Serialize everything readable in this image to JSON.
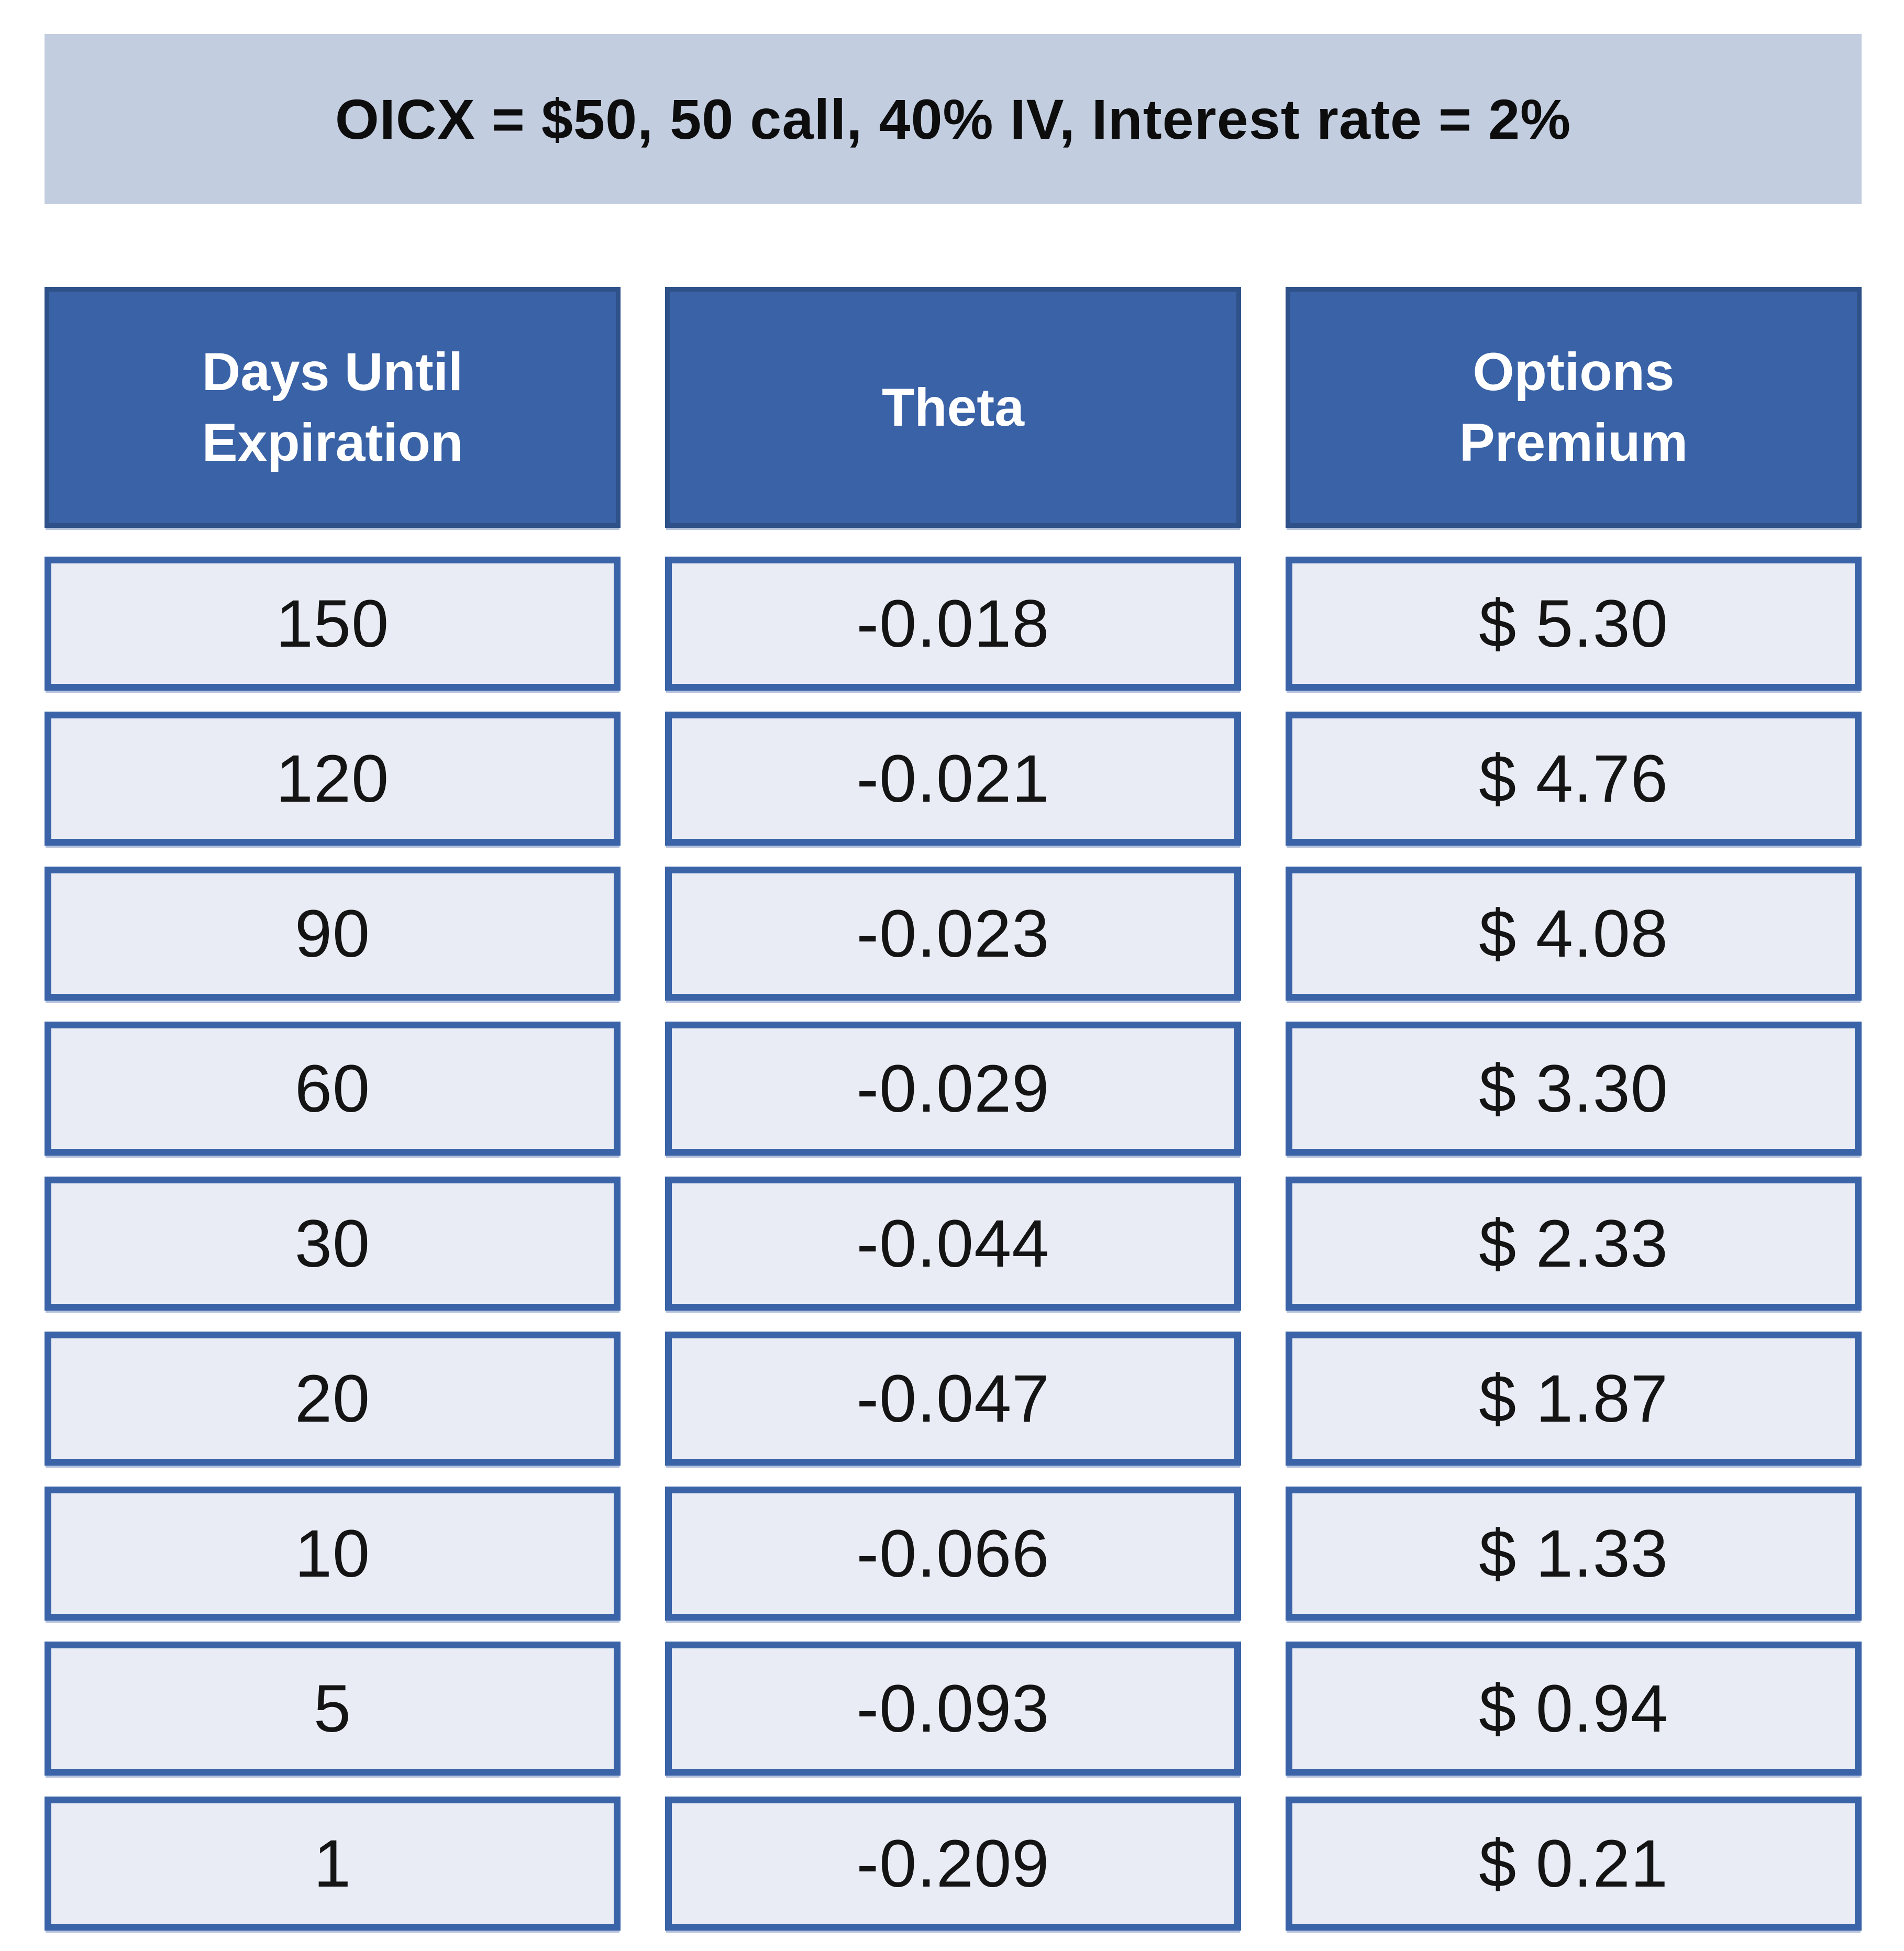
{
  "banner": {
    "title": "OICX = $50, 50 call, 40% IV, Interest rate = 2%"
  },
  "table": {
    "headers": {
      "days": "Days Until\nExpiration",
      "theta": "Theta",
      "premium": "Options\nPremium"
    },
    "rows": [
      {
        "days": "150",
        "theta": "-0.018",
        "premium": "$ 5.30"
      },
      {
        "days": "120",
        "theta": "-0.021",
        "premium": "$ 4.76"
      },
      {
        "days": "90",
        "theta": "-0.023",
        "premium": "$ 4.08"
      },
      {
        "days": "60",
        "theta": "-0.029",
        "premium": "$ 3.30"
      },
      {
        "days": "30",
        "theta": "-0.044",
        "premium": "$ 2.33"
      },
      {
        "days": "20",
        "theta": "-0.047",
        "premium": "$ 1.87"
      },
      {
        "days": "10",
        "theta": "-0.066",
        "premium": "$ 1.33"
      },
      {
        "days": "5",
        "theta": "-0.093",
        "premium": "$ 0.94"
      },
      {
        "days": "1",
        "theta": "-0.209",
        "premium": "$ 0.21"
      }
    ]
  },
  "colors": {
    "banner_bg": "#c2cde0",
    "header_bg": "#3a62a6",
    "header_border": "#2f5189",
    "cell_bg": "#e9ecf5",
    "cell_border": "#3a63a8",
    "header_text": "#ffffff",
    "body_text": "#141414"
  },
  "chart_data": {
    "type": "table",
    "title": "OICX = $50, 50 call, 40% IV, Interest rate = 2%",
    "columns": [
      "Days Until Expiration",
      "Theta",
      "Options Premium"
    ],
    "rows": [
      [
        150,
        -0.018,
        5.3
      ],
      [
        120,
        -0.021,
        4.76
      ],
      [
        90,
        -0.023,
        4.08
      ],
      [
        60,
        -0.029,
        3.3
      ],
      [
        30,
        -0.044,
        2.33
      ],
      [
        20,
        -0.047,
        1.87
      ],
      [
        10,
        -0.066,
        1.33
      ],
      [
        5,
        -0.093,
        0.94
      ],
      [
        1,
        -0.209,
        0.21
      ]
    ]
  }
}
